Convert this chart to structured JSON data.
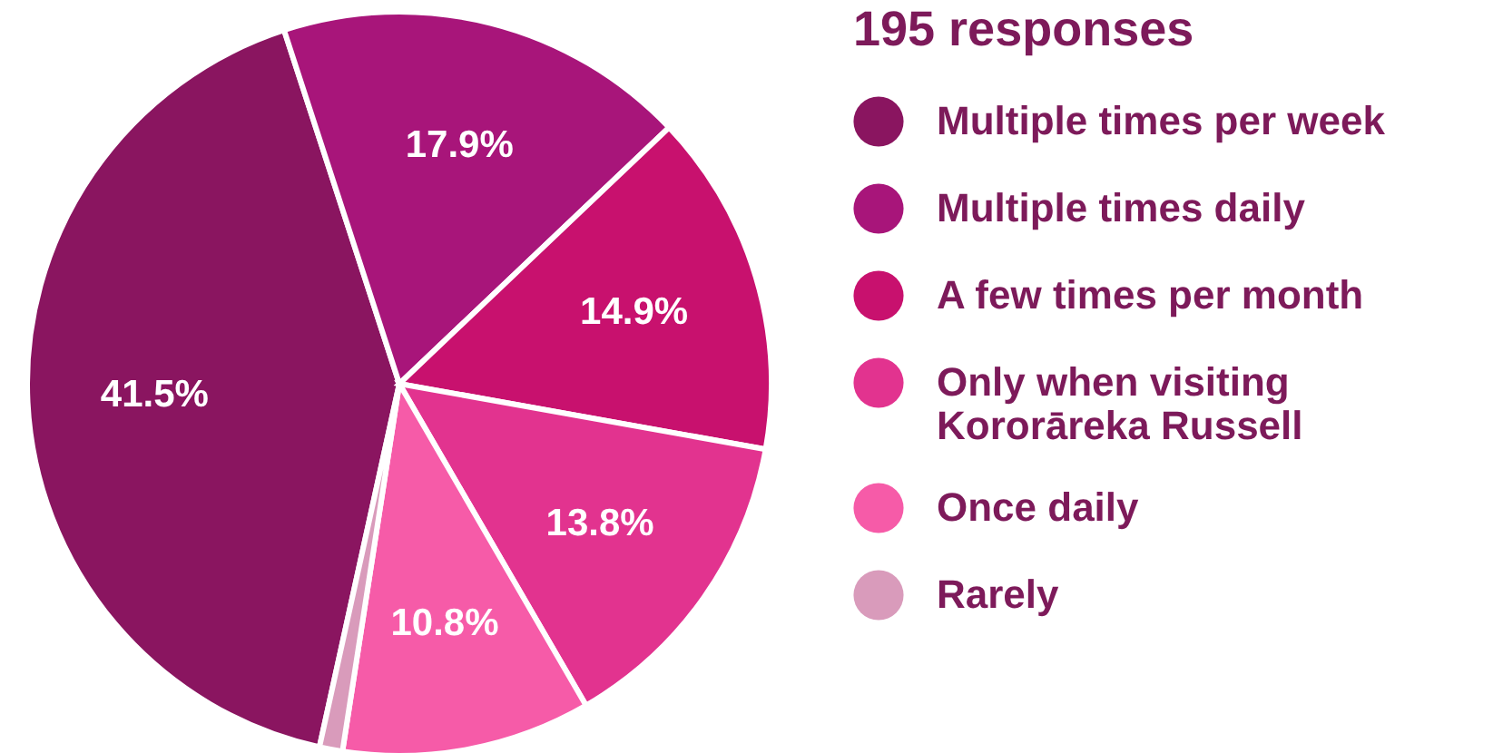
{
  "chart_data": {
    "type": "pie",
    "legend_title": "195 responses",
    "categories": [
      "Multiple times per week",
      "Multiple times daily",
      "A few times per month",
      "Only when visiting Kororāreka Russell",
      "Once daily",
      "Rarely"
    ],
    "values": [
      41.5,
      17.9,
      14.9,
      13.8,
      10.8,
      1.0
    ],
    "colors": [
      "#8a1560",
      "#a8157a",
      "#c8116e",
      "#e2338f",
      "#f65ba8",
      "#d99bbb"
    ],
    "value_labels": [
      "41.5%",
      "17.9%",
      "14.9%",
      "13.8%",
      "10.8%",
      null
    ],
    "legend": "right"
  }
}
